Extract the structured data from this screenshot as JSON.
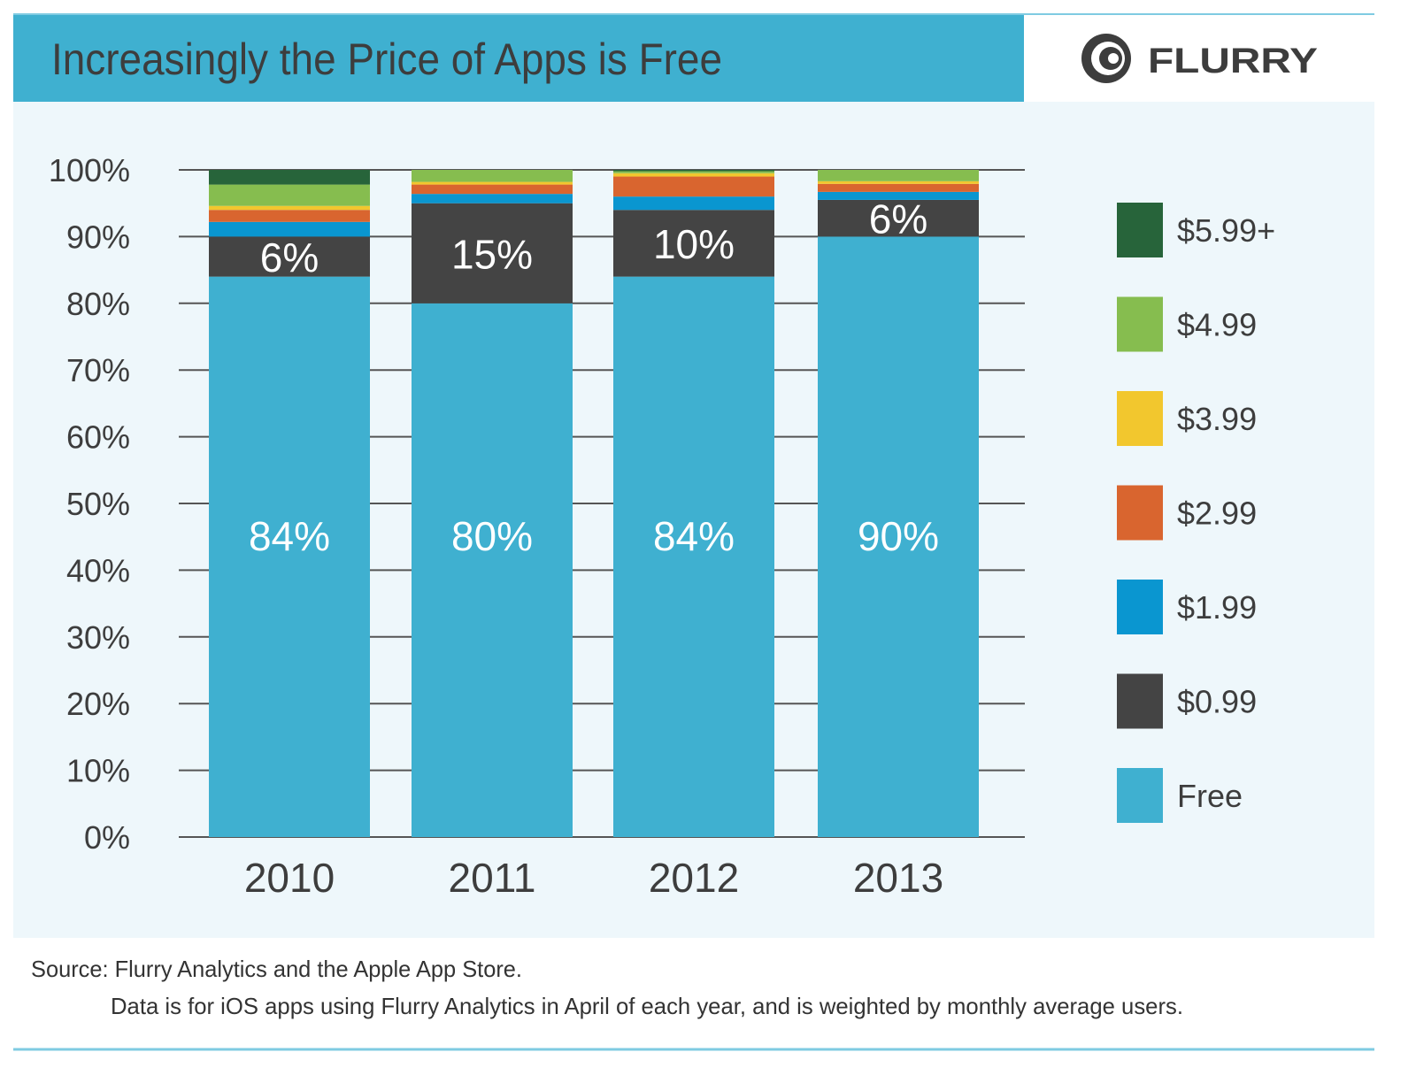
{
  "chart_data": {
    "type": "bar",
    "stacked": true,
    "title": "Increasingly the Price of Apps is Free",
    "brand": "FLURRY",
    "categories": [
      "2010",
      "2011",
      "2012",
      "2013"
    ],
    "ylim": [
      0,
      100
    ],
    "yticks": [
      "0%",
      "10%",
      "20%",
      "30%",
      "40%",
      "50%",
      "60%",
      "70%",
      "80%",
      "90%",
      "100%"
    ],
    "grid": true,
    "legend_position": "right",
    "series": [
      {
        "name": "Free",
        "color": "#3fb0d0",
        "values": [
          84,
          80,
          84,
          90
        ],
        "labels": [
          "84%",
          "80%",
          "84%",
          "90%"
        ]
      },
      {
        "name": "$0.99",
        "color": "#444444",
        "values": [
          6,
          15,
          10,
          5.5
        ],
        "labels": [
          "6%",
          "15%",
          "10%",
          "6%"
        ]
      },
      {
        "name": "$1.99",
        "color": "#0a96d0",
        "values": [
          2.2,
          1.4,
          2,
          1.2
        ]
      },
      {
        "name": "$2.99",
        "color": "#d9652f",
        "values": [
          1.8,
          1.4,
          3,
          1.2
        ]
      },
      {
        "name": "$3.99",
        "color": "#f2c72e",
        "values": [
          0.6,
          0.4,
          0.5,
          0.4
        ]
      },
      {
        "name": "$4.99",
        "color": "#86bd4f",
        "values": [
          3.2,
          1.8,
          0.3,
          1.7
        ]
      },
      {
        "name": "$5.99+",
        "color": "#27643a",
        "values": [
          2.2,
          0,
          0.2,
          0
        ]
      }
    ],
    "source": "Source: Flurry Analytics and the Apple App Store.",
    "note": "Data is for iOS apps using Flurry Analytics in April of each year, and is weighted by monthly average users."
  },
  "colors": {
    "header": "#3fb0d0",
    "panel": "#eef7fb",
    "title_text": "#3d3d3d",
    "grid": "#555555"
  }
}
